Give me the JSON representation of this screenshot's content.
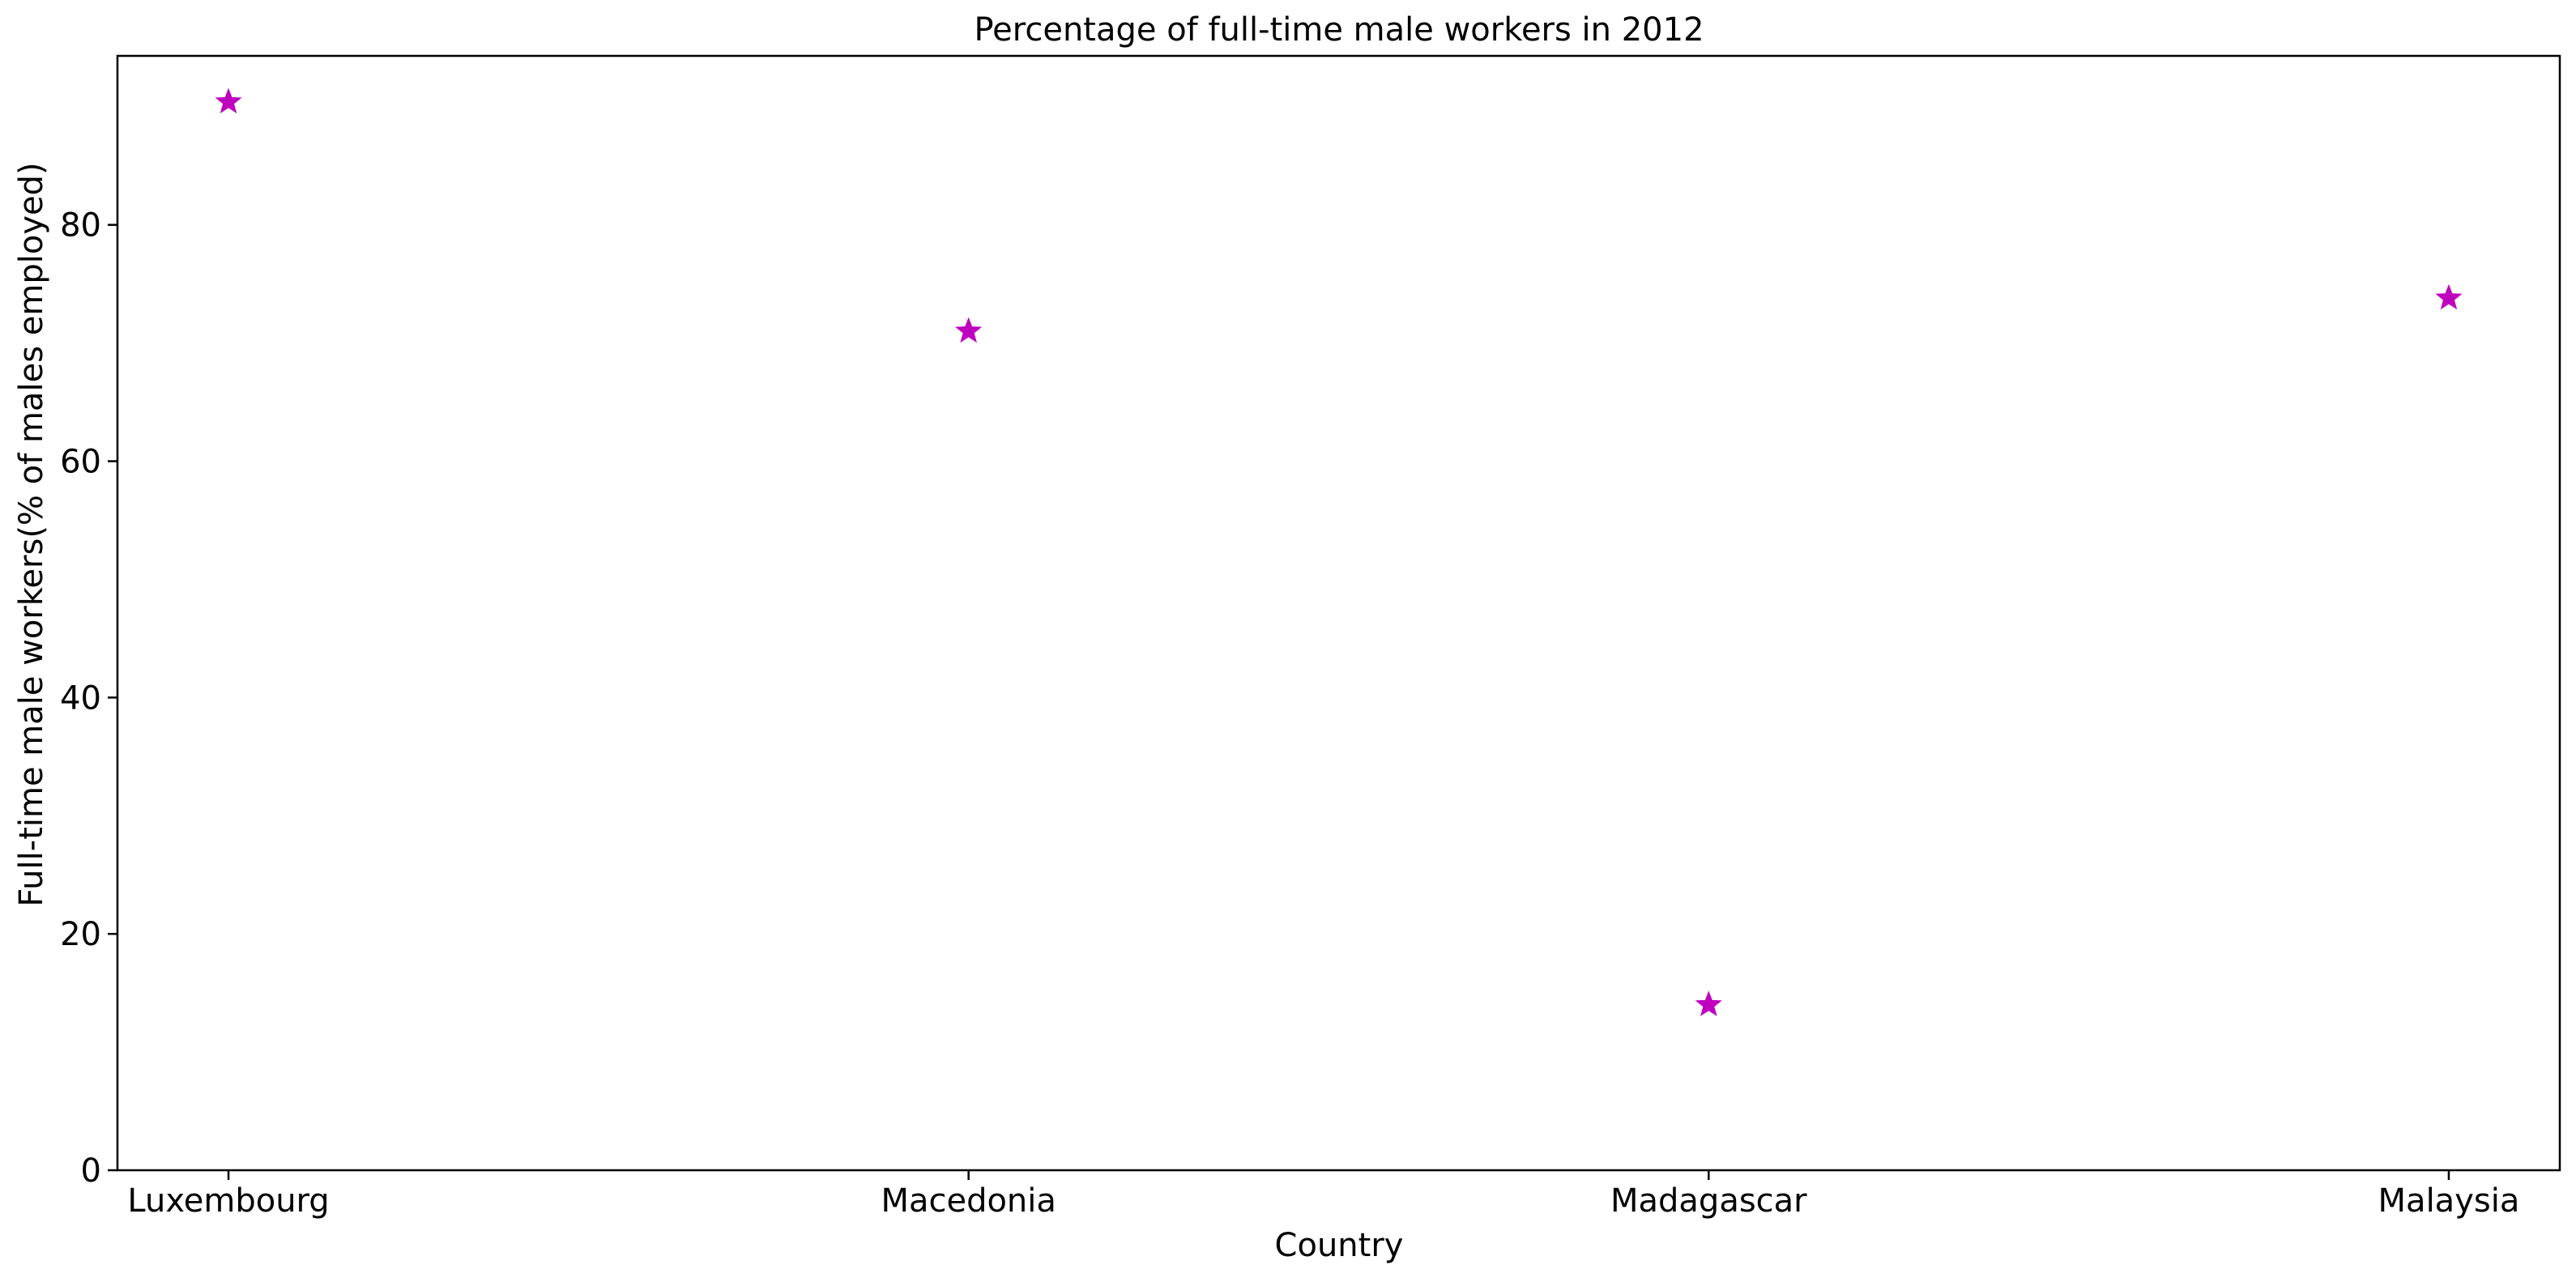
{
  "chart_data": {
    "type": "scatter",
    "title": "Percentage of full-time male workers in 2012",
    "xlabel": "Country",
    "ylabel": "Full-time male workers(% of males employed)",
    "categories": [
      "Luxembourg",
      "Macedonia",
      "Madagascar",
      "Malaysia"
    ],
    "series": [
      {
        "values": [
          90.4,
          71.0,
          14.0,
          73.8
        ],
        "color": "#bf00bf",
        "marker": "star"
      }
    ],
    "ylim": [
      0,
      94.3
    ],
    "yticks": [
      0,
      20,
      40,
      60,
      80
    ],
    "grid": false,
    "legend": "none"
  }
}
